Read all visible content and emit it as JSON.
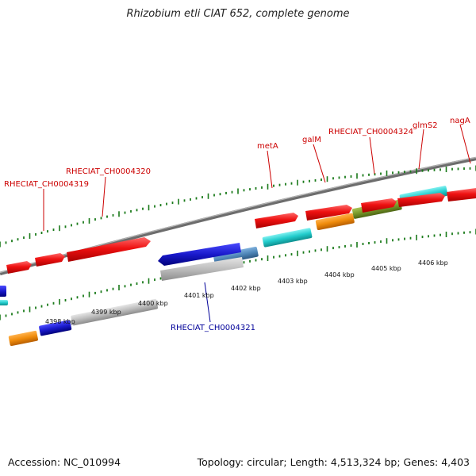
{
  "header": {
    "title": "Rhizobium etli CIAT 652, complete genome"
  },
  "footer": {
    "accession": "Accession: NC_010994",
    "summary": "Topology: circular; Length: 4,513,324 bp; Genes: 4,403"
  },
  "scale": {
    "ticks": [
      "4398 kbp",
      "4399 kbp",
      "4400 kbp",
      "4401 kbp",
      "4402 kbp",
      "4403 kbp",
      "4404 kbp",
      "4405 kbp",
      "4406 kbp"
    ]
  },
  "gene_labels": [
    {
      "id": "RHECIAT_CH0004319",
      "text": "RHECIAT_CH0004319",
      "color": "#cc0000"
    },
    {
      "id": "RHECIAT_CH0004320",
      "text": "RHECIAT_CH0004320",
      "color": "#cc0000"
    },
    {
      "id": "metA",
      "text": "metA",
      "color": "#cc0000"
    },
    {
      "id": "galM",
      "text": "galM",
      "color": "#cc0000"
    },
    {
      "id": "RHECIAT_CH0004324",
      "text": "RHECIAT_CH0004324",
      "color": "#cc0000"
    },
    {
      "id": "glmS2",
      "text": "glmS2",
      "color": "#cc0000"
    },
    {
      "id": "nagA",
      "text": "nagA",
      "color": "#cc0000"
    },
    {
      "id": "RHECIAT_CH0004321",
      "text": "RHECIAT_CH0004321",
      "color": "#000099"
    }
  ],
  "colors": {
    "cds": "#ee1111",
    "gray_gene": "#bbbbbb",
    "blue_gene": "#1a1acc",
    "orange_gene": "#f08c0c",
    "cyan_gene": "#22cccc",
    "steelblue_gene": "#4f86b8",
    "olive_gene": "#7a9a2a",
    "backbone": "#808080",
    "tick": "#1a7a1a"
  }
}
